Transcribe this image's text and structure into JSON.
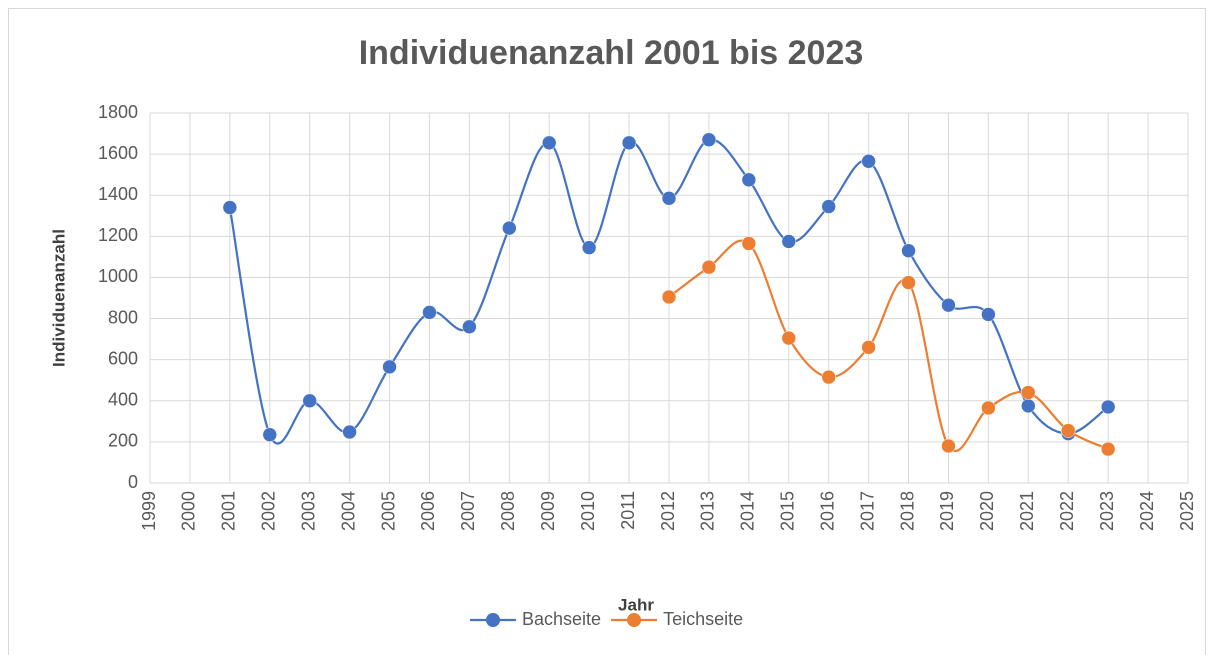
{
  "chart_data": {
    "type": "line",
    "title": "Individuenanzahl 2001 bis 2023",
    "x_label": "Jahr",
    "y_label": "Individuenanzahl",
    "x": [
      2001,
      2002,
      2003,
      2004,
      2005,
      2006,
      2007,
      2008,
      2009,
      2010,
      2011,
      2012,
      2013,
      2014,
      2015,
      2016,
      2017,
      2018,
      2019,
      2020,
      2021,
      2022,
      2023
    ],
    "series": [
      {
        "name": "Bachseite",
        "color": "#4472c4",
        "values": [
          1340,
          235,
          400,
          248,
          565,
          830,
          760,
          1240,
          1655,
          1145,
          1655,
          1385,
          1670,
          1475,
          1175,
          1345,
          1565,
          1130,
          865,
          820,
          375,
          240,
          370
        ]
      },
      {
        "name": "Teichseite",
        "color": "#ed7d31",
        "values": [
          null,
          null,
          null,
          null,
          null,
          null,
          null,
          null,
          null,
          null,
          null,
          905,
          1050,
          1165,
          705,
          515,
          660,
          975,
          180,
          365,
          440,
          255,
          165
        ]
      }
    ],
    "xlim": [
      1999,
      2025
    ],
    "xticks": [
      1999,
      2000,
      2001,
      2002,
      2003,
      2004,
      2005,
      2006,
      2007,
      2008,
      2009,
      2010,
      2011,
      2012,
      2013,
      2014,
      2015,
      2016,
      2017,
      2018,
      2019,
      2020,
      2021,
      2022,
      2023,
      2024,
      2025
    ],
    "ylim": [
      0,
      1800
    ],
    "yticks": [
      0,
      200,
      400,
      600,
      800,
      1000,
      1200,
      1400,
      1600,
      1800
    ],
    "grid": true,
    "smooth": true,
    "legend": "bottom"
  }
}
